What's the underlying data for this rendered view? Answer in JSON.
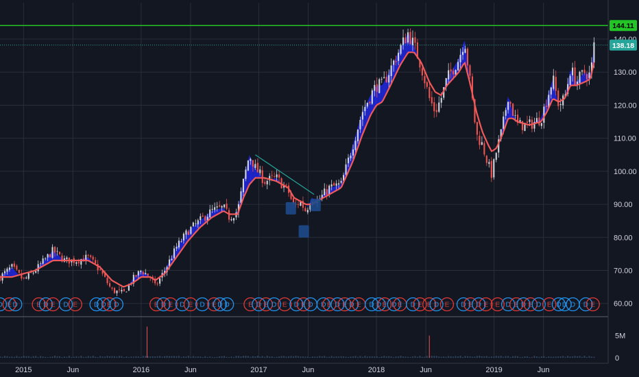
{
  "chart_data": {
    "type": "candlestick-line",
    "y_ticks": [
      "60.00",
      "70.00",
      "80.00",
      "90.00",
      "100.00",
      "110.00",
      "120.00",
      "130.00",
      "140.00"
    ],
    "y_tick_values": [
      60,
      70,
      80,
      90,
      100,
      110,
      120,
      130,
      140
    ],
    "ylim": [
      56,
      151
    ],
    "x_ticks": [
      "2015",
      "Jun",
      "2016",
      "Jun",
      "2017",
      "Jun",
      "2018",
      "Jun",
      "2019",
      "Jun"
    ],
    "x_tick_times": [
      2015.0,
      2015.42,
      2016.0,
      2016.42,
      2017.0,
      2017.42,
      2018.0,
      2018.42,
      2019.0,
      2019.42
    ],
    "xlim": [
      2014.8,
      2019.97
    ],
    "resistance_level": 144.11,
    "resistance_label": "144.11",
    "last_price": 138.18,
    "last_price_label": "138.18",
    "price_path": [
      [
        2014.8,
        68
      ],
      [
        2014.9,
        71
      ],
      [
        2015.0,
        67
      ],
      [
        2015.1,
        70
      ],
      [
        2015.25,
        76
      ],
      [
        2015.35,
        73
      ],
      [
        2015.45,
        73
      ],
      [
        2015.55,
        74
      ],
      [
        2015.65,
        70
      ],
      [
        2015.75,
        64
      ],
      [
        2015.85,
        63
      ],
      [
        2015.92,
        67
      ],
      [
        2016.0,
        70
      ],
      [
        2016.08,
        68
      ],
      [
        2016.12,
        65
      ],
      [
        2016.2,
        70
      ],
      [
        2016.3,
        77
      ],
      [
        2016.4,
        82
      ],
      [
        2016.5,
        85
      ],
      [
        2016.6,
        88
      ],
      [
        2016.7,
        89
      ],
      [
        2016.75,
        86
      ],
      [
        2016.82,
        88
      ],
      [
        2016.87,
        97
      ],
      [
        2016.92,
        105
      ],
      [
        2016.97,
        101
      ],
      [
        2017.05,
        97
      ],
      [
        2017.15,
        98
      ],
      [
        2017.25,
        94
      ],
      [
        2017.3,
        89
      ],
      [
        2017.35,
        91
      ],
      [
        2017.4,
        88
      ],
      [
        2017.45,
        92
      ],
      [
        2017.5,
        91
      ],
      [
        2017.6,
        95
      ],
      [
        2017.7,
        96
      ],
      [
        2017.8,
        108
      ],
      [
        2017.88,
        118
      ],
      [
        2017.95,
        123
      ],
      [
        2018.0,
        126
      ],
      [
        2018.05,
        126
      ],
      [
        2018.12,
        131
      ],
      [
        2018.2,
        137
      ],
      [
        2018.27,
        142
      ],
      [
        2018.32,
        138
      ],
      [
        2018.38,
        132
      ],
      [
        2018.45,
        122
      ],
      [
        2018.5,
        118
      ],
      [
        2018.55,
        122
      ],
      [
        2018.6,
        128
      ],
      [
        2018.7,
        134
      ],
      [
        2018.75,
        140
      ],
      [
        2018.8,
        126
      ],
      [
        2018.85,
        111
      ],
      [
        2018.9,
        108
      ],
      [
        2018.95,
        102
      ],
      [
        2018.98,
        99
      ],
      [
        2019.02,
        106
      ],
      [
        2019.07,
        113
      ],
      [
        2019.12,
        123
      ],
      [
        2019.16,
        118
      ],
      [
        2019.2,
        114
      ],
      [
        2019.3,
        114
      ],
      [
        2019.4,
        116
      ],
      [
        2019.45,
        122
      ],
      [
        2019.5,
        128
      ],
      [
        2019.55,
        120
      ],
      [
        2019.6,
        122
      ],
      [
        2019.65,
        131
      ],
      [
        2019.7,
        127
      ],
      [
        2019.77,
        130
      ],
      [
        2019.82,
        129
      ],
      [
        2019.85,
        138
      ]
    ],
    "ema_path": [
      [
        2014.8,
        68
      ],
      [
        2014.9,
        68
      ],
      [
        2015.0,
        69
      ],
      [
        2015.1,
        70
      ],
      [
        2015.25,
        73
      ],
      [
        2015.35,
        73
      ],
      [
        2015.45,
        73
      ],
      [
        2015.55,
        73
      ],
      [
        2015.65,
        71
      ],
      [
        2015.75,
        67
      ],
      [
        2015.85,
        65
      ],
      [
        2015.92,
        66
      ],
      [
        2016.0,
        68
      ],
      [
        2016.08,
        68
      ],
      [
        2016.12,
        67
      ],
      [
        2016.2,
        69
      ],
      [
        2016.3,
        74
      ],
      [
        2016.4,
        79
      ],
      [
        2016.5,
        83
      ],
      [
        2016.6,
        86
      ],
      [
        2016.7,
        88
      ],
      [
        2016.75,
        87
      ],
      [
        2016.82,
        87
      ],
      [
        2016.87,
        92
      ],
      [
        2016.92,
        96
      ],
      [
        2016.97,
        98
      ],
      [
        2017.05,
        98
      ],
      [
        2017.15,
        97
      ],
      [
        2017.25,
        95
      ],
      [
        2017.3,
        92
      ],
      [
        2017.35,
        91
      ],
      [
        2017.4,
        90
      ],
      [
        2017.45,
        90
      ],
      [
        2017.5,
        91
      ],
      [
        2017.6,
        93
      ],
      [
        2017.7,
        95
      ],
      [
        2017.8,
        103
      ],
      [
        2017.88,
        111
      ],
      [
        2017.95,
        117
      ],
      [
        2018.0,
        120
      ],
      [
        2018.05,
        121
      ],
      [
        2018.12,
        126
      ],
      [
        2018.2,
        132
      ],
      [
        2018.27,
        136
      ],
      [
        2018.32,
        136
      ],
      [
        2018.38,
        133
      ],
      [
        2018.45,
        127
      ],
      [
        2018.5,
        124
      ],
      [
        2018.55,
        123
      ],
      [
        2018.6,
        126
      ],
      [
        2018.7,
        130
      ],
      [
        2018.75,
        133
      ],
      [
        2018.8,
        126
      ],
      [
        2018.85,
        118
      ],
      [
        2018.9,
        112
      ],
      [
        2018.95,
        108
      ],
      [
        2018.98,
        106
      ],
      [
        2019.02,
        107
      ],
      [
        2019.07,
        111
      ],
      [
        2019.12,
        116
      ],
      [
        2019.16,
        116
      ],
      [
        2019.2,
        115
      ],
      [
        2019.3,
        114
      ],
      [
        2019.4,
        115
      ],
      [
        2019.45,
        118
      ],
      [
        2019.5,
        122
      ],
      [
        2019.55,
        121
      ],
      [
        2019.6,
        122
      ],
      [
        2019.65,
        126
      ],
      [
        2019.7,
        126
      ],
      [
        2019.77,
        127
      ],
      [
        2019.82,
        128
      ],
      [
        2019.85,
        133
      ]
    ],
    "trendline": [
      [
        2016.97,
        105
      ],
      [
        2017.47,
        93
      ]
    ],
    "markers": [
      [
        2017.27,
        89
      ],
      [
        2017.38,
        82
      ],
      [
        2017.48,
        90
      ]
    ],
    "volume_ticks": [
      "5M",
      "0"
    ],
    "volume_tick_values": [
      5,
      0
    ],
    "volume_lim": [
      0,
      8
    ],
    "volume_spikes": [
      [
        2016.05,
        7
      ],
      [
        2018.45,
        5
      ]
    ],
    "events": [
      {
        "t": 2014.8,
        "label": "D",
        "kind": "D"
      },
      {
        "t": 2014.88,
        "label": "E",
        "kind": "E"
      },
      {
        "t": 2014.93,
        "label": "D",
        "kind": "D"
      },
      {
        "t": 2015.13,
        "label": "E",
        "kind": "E"
      },
      {
        "t": 2015.19,
        "label": "D",
        "kind": "D"
      },
      {
        "t": 2015.25,
        "label": "E",
        "kind": "E"
      },
      {
        "t": 2015.36,
        "label": "D",
        "kind": "D"
      },
      {
        "t": 2015.44,
        "label": "E",
        "kind": "E"
      },
      {
        "t": 2015.62,
        "label": "D",
        "kind": "D"
      },
      {
        "t": 2015.68,
        "label": "D",
        "kind": "D"
      },
      {
        "t": 2015.73,
        "label": "E",
        "kind": "E"
      },
      {
        "t": 2015.79,
        "label": "D",
        "kind": "D"
      },
      {
        "t": 2016.13,
        "label": "E",
        "kind": "E"
      },
      {
        "t": 2016.19,
        "label": "D",
        "kind": "D"
      },
      {
        "t": 2016.25,
        "label": "E",
        "kind": "E"
      },
      {
        "t": 2016.35,
        "label": "D",
        "kind": "D"
      },
      {
        "t": 2016.42,
        "label": "E",
        "kind": "E"
      },
      {
        "t": 2016.52,
        "label": "D",
        "kind": "D"
      },
      {
        "t": 2016.62,
        "label": "E",
        "kind": "E"
      },
      {
        "t": 2016.67,
        "label": "D",
        "kind": "D"
      },
      {
        "t": 2016.73,
        "label": "D",
        "kind": "D"
      },
      {
        "t": 2016.93,
        "label": "E",
        "kind": "E"
      },
      {
        "t": 2017.0,
        "label": "D",
        "kind": "D"
      },
      {
        "t": 2017.06,
        "label": "E",
        "kind": "E"
      },
      {
        "t": 2017.13,
        "label": "D",
        "kind": "D"
      },
      {
        "t": 2017.22,
        "label": "E",
        "kind": "E"
      },
      {
        "t": 2017.32,
        "label": "D",
        "kind": "D"
      },
      {
        "t": 2017.38,
        "label": "E",
        "kind": "E"
      },
      {
        "t": 2017.44,
        "label": "D",
        "kind": "D"
      },
      {
        "t": 2017.55,
        "label": "D",
        "kind": "D"
      },
      {
        "t": 2017.6,
        "label": "E",
        "kind": "E"
      },
      {
        "t": 2017.67,
        "label": "D",
        "kind": "D"
      },
      {
        "t": 2017.73,
        "label": "E",
        "kind": "E"
      },
      {
        "t": 2017.79,
        "label": "D",
        "kind": "D"
      },
      {
        "t": 2017.85,
        "label": "E",
        "kind": "E"
      },
      {
        "t": 2017.96,
        "label": "D",
        "kind": "D"
      },
      {
        "t": 2018.02,
        "label": "D",
        "kind": "D"
      },
      {
        "t": 2018.07,
        "label": "E",
        "kind": "E"
      },
      {
        "t": 2018.15,
        "label": "D",
        "kind": "D"
      },
      {
        "t": 2018.2,
        "label": "E",
        "kind": "E"
      },
      {
        "t": 2018.31,
        "label": "D",
        "kind": "D"
      },
      {
        "t": 2018.37,
        "label": "E",
        "kind": "E"
      },
      {
        "t": 2018.45,
        "label": "E",
        "kind": "E"
      },
      {
        "t": 2018.51,
        "label": "D",
        "kind": "D"
      },
      {
        "t": 2018.6,
        "label": "E",
        "kind": "E"
      },
      {
        "t": 2018.74,
        "label": "D",
        "kind": "D"
      },
      {
        "t": 2018.8,
        "label": "E",
        "kind": "E"
      },
      {
        "t": 2018.87,
        "label": "D",
        "kind": "D"
      },
      {
        "t": 2018.93,
        "label": "E",
        "kind": "E"
      },
      {
        "t": 2019.03,
        "label": "E",
        "kind": "E"
      },
      {
        "t": 2019.12,
        "label": "D",
        "kind": "D"
      },
      {
        "t": 2019.19,
        "label": "E",
        "kind": "E"
      },
      {
        "t": 2019.25,
        "label": "D",
        "kind": "D"
      },
      {
        "t": 2019.31,
        "label": "E",
        "kind": "E"
      },
      {
        "t": 2019.38,
        "label": "D",
        "kind": "D"
      },
      {
        "t": 2019.47,
        "label": "E",
        "kind": "E"
      },
      {
        "t": 2019.55,
        "label": "D",
        "kind": "D"
      },
      {
        "t": 2019.6,
        "label": "D",
        "kind": "D"
      },
      {
        "t": 2019.67,
        "label": "D",
        "kind": "D"
      },
      {
        "t": 2019.78,
        "label": "D",
        "kind": "D"
      },
      {
        "t": 2019.84,
        "label": "E",
        "kind": "E"
      }
    ],
    "colors": {
      "background": "#131722",
      "grid": "#2a2e39",
      "candle_up": "#d1d4dc",
      "candle_down": "#ef5350",
      "band": "#2128e8",
      "ema": "#f05a5a",
      "resistance": "#22c426",
      "last_price_line": "#26a69a",
      "trendline": "#26a69a",
      "marker": "#1e4a8a",
      "event_d": "#2196f3",
      "event_e": "#e53935",
      "axis_text": "#d1d4dc",
      "volume": "#3a5a7a"
    }
  }
}
